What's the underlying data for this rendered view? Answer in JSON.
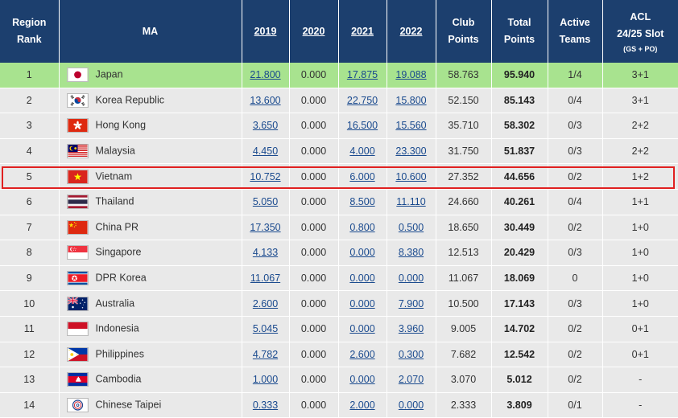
{
  "headers": {
    "rank": [
      "Region",
      "Rank"
    ],
    "ma": "MA",
    "y2019": "2019",
    "y2020": "2020",
    "y2021": "2021",
    "y2022": "2022",
    "club": [
      "Club",
      "Points"
    ],
    "total": [
      "Total",
      "Points"
    ],
    "active": [
      "Active",
      "Teams"
    ],
    "acl": [
      "ACL",
      "24/25 Slot"
    ],
    "acl_sub": "(GS + PO)"
  },
  "rows": [
    {
      "rank": "1",
      "ma": "Japan",
      "flag": "japan-flag-icon",
      "y2019": "21.800",
      "y2020": "0.000",
      "y2021": "17.875",
      "y2022": "19.088",
      "club": "58.763",
      "total": "95.940",
      "active": "1/4",
      "acl": "3+1"
    },
    {
      "rank": "2",
      "ma": "Korea Republic",
      "flag": "korea-republic-flag-icon",
      "y2019": "13.600",
      "y2020": "0.000",
      "y2021": "22.750",
      "y2022": "15.800",
      "club": "52.150",
      "total": "85.143",
      "active": "0/4",
      "acl": "3+1"
    },
    {
      "rank": "3",
      "ma": "Hong Kong",
      "flag": "hong-kong-flag-icon",
      "y2019": "3.650",
      "y2020": "0.000",
      "y2021": "16.500",
      "y2022": "15.560",
      "club": "35.710",
      "total": "58.302",
      "active": "0/3",
      "acl": "2+2"
    },
    {
      "rank": "4",
      "ma": "Malaysia",
      "flag": "malaysia-flag-icon",
      "y2019": "4.450",
      "y2020": "0.000",
      "y2021": "4.000",
      "y2022": "23.300",
      "club": "31.750",
      "total": "51.837",
      "active": "0/3",
      "acl": "2+2"
    },
    {
      "rank": "5",
      "ma": "Vietnam",
      "flag": "vietnam-flag-icon",
      "y2019": "10.752",
      "y2020": "0.000",
      "y2021": "6.000",
      "y2022": "10.600",
      "club": "27.352",
      "total": "44.656",
      "active": "0/2",
      "acl": "1+2"
    },
    {
      "rank": "6",
      "ma": "Thailand",
      "flag": "thailand-flag-icon",
      "y2019": "5.050",
      "y2020": "0.000",
      "y2021": "8.500",
      "y2022": "11.110",
      "club": "24.660",
      "total": "40.261",
      "active": "0/4",
      "acl": "1+1"
    },
    {
      "rank": "7",
      "ma": "China PR",
      "flag": "china-pr-flag-icon",
      "y2019": "17.350",
      "y2020": "0.000",
      "y2021": "0.800",
      "y2022": "0.500",
      "club": "18.650",
      "total": "30.449",
      "active": "0/2",
      "acl": "1+0"
    },
    {
      "rank": "8",
      "ma": "Singapore",
      "flag": "singapore-flag-icon",
      "y2019": "4.133",
      "y2020": "0.000",
      "y2021": "0.000",
      "y2022": "8.380",
      "club": "12.513",
      "total": "20.429",
      "active": "0/3",
      "acl": "1+0"
    },
    {
      "rank": "9",
      "ma": "DPR Korea",
      "flag": "dpr-korea-flag-icon",
      "y2019": "11.067",
      "y2020": "0.000",
      "y2021": "0.000",
      "y2022": "0.000",
      "club": "11.067",
      "total": "18.069",
      "active": "0",
      "acl": "1+0"
    },
    {
      "rank": "10",
      "ma": "Australia",
      "flag": "australia-flag-icon",
      "y2019": "2.600",
      "y2020": "0.000",
      "y2021": "0.000",
      "y2022": "7.900",
      "club": "10.500",
      "total": "17.143",
      "active": "0/3",
      "acl": "1+0"
    },
    {
      "rank": "11",
      "ma": "Indonesia",
      "flag": "indonesia-flag-icon",
      "y2019": "5.045",
      "y2020": "0.000",
      "y2021": "0.000",
      "y2022": "3.960",
      "club": "9.005",
      "total": "14.702",
      "active": "0/2",
      "acl": "0+1"
    },
    {
      "rank": "12",
      "ma": "Philippines",
      "flag": "philippines-flag-icon",
      "y2019": "4.782",
      "y2020": "0.000",
      "y2021": "2.600",
      "y2022": "0.300",
      "club": "7.682",
      "total": "12.542",
      "active": "0/2",
      "acl": "0+1"
    },
    {
      "rank": "13",
      "ma": "Cambodia",
      "flag": "cambodia-flag-icon",
      "y2019": "1.000",
      "y2020": "0.000",
      "y2021": "0.000",
      "y2022": "2.070",
      "club": "3.070",
      "total": "5.012",
      "active": "0/2",
      "acl": "-"
    },
    {
      "rank": "14",
      "ma": "Chinese Taipei",
      "flag": "chinese-taipei-flag-icon",
      "y2019": "0.333",
      "y2020": "0.000",
      "y2021": "2.000",
      "y2022": "0.000",
      "club": "2.333",
      "total": "3.809",
      "active": "0/1",
      "acl": "-"
    }
  ],
  "colors": {
    "header_bg": "#1c3f6e",
    "leader_row_bg": "#a8e38f",
    "row_bg": "#e9e9e9",
    "link": "#1a4a8e",
    "highlight_border": "#e02020"
  },
  "highlighted_rank": "5"
}
